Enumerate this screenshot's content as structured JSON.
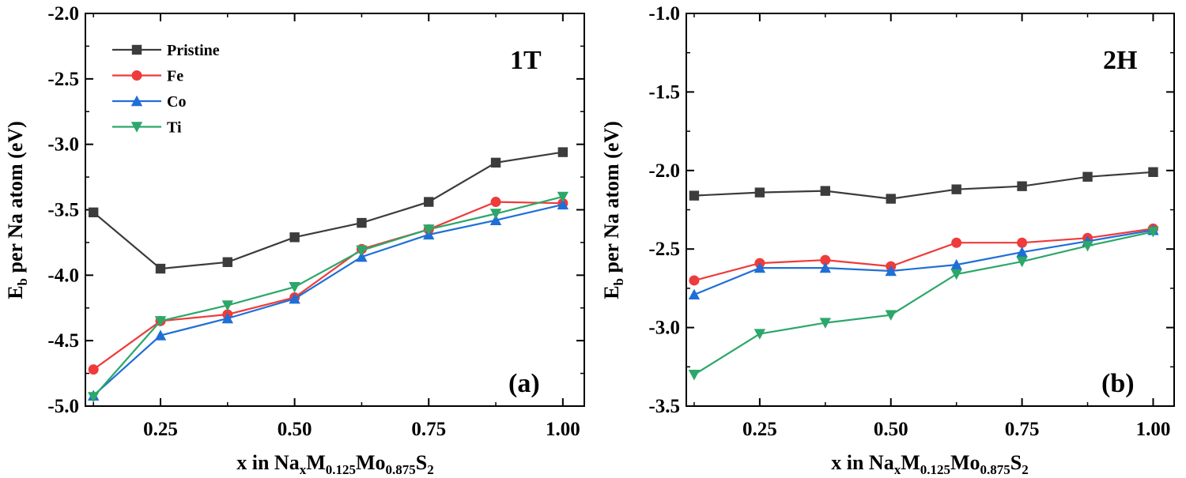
{
  "chart_data": [
    {
      "type": "line",
      "panel_label": "(a)",
      "phase_label": "1T",
      "xlabel": {
        "pre": "x in Na",
        "s1": "x",
        "m": "M",
        "s2": "0.125",
        "mo": "Mo",
        "s3": "0.875",
        "s": "S",
        "s4": "2"
      },
      "ylabel": {
        "pre": "E",
        "sub": "b",
        "post": " per Na atom (eV)"
      },
      "xlim": [
        0.11,
        1.04
      ],
      "ylim": [
        -5.0,
        -2.0
      ],
      "xticks": [
        0.25,
        0.5,
        0.75,
        1.0
      ],
      "xtick_labels": [
        "0.25",
        "0.50",
        "0.75",
        "1.00"
      ],
      "yticks": [
        -5.0,
        -4.5,
        -4.0,
        -3.5,
        -3.0,
        -2.5,
        -2.0
      ],
      "ytick_labels": [
        "-5.0",
        "-4.5",
        "-4.0",
        "-3.5",
        "-3.0",
        "-2.5",
        "-2.0"
      ],
      "legend_position": "top-left",
      "x": [
        0.125,
        0.25,
        0.375,
        0.5,
        0.625,
        0.75,
        0.875,
        1.0
      ],
      "series": [
        {
          "name": "Pristine",
          "color": "#3c3c3c",
          "marker": "square",
          "values": [
            -3.52,
            -3.95,
            -3.9,
            -3.71,
            -3.6,
            -3.44,
            -3.14,
            -3.06
          ]
        },
        {
          "name": "Fe",
          "color": "#ee3b3b",
          "marker": "circle",
          "values": [
            -4.72,
            -4.35,
            -4.3,
            -4.17,
            -3.8,
            -3.65,
            -3.44,
            -3.45
          ]
        },
        {
          "name": "Co",
          "color": "#1f6fd6",
          "marker": "triangle-up",
          "values": [
            -4.92,
            -4.46,
            -4.33,
            -4.18,
            -3.86,
            -3.69,
            -3.58,
            -3.46
          ]
        },
        {
          "name": "Ti",
          "color": "#2ca76a",
          "marker": "triangle-down",
          "values": [
            -4.93,
            -4.35,
            -4.23,
            -4.09,
            -3.81,
            -3.65,
            -3.53,
            -3.4
          ]
        }
      ]
    },
    {
      "type": "line",
      "panel_label": "(b)",
      "phase_label": "2H",
      "xlabel": {
        "pre": "x in Na",
        "s1": "x",
        "m": "M",
        "s2": "0.125",
        "mo": "Mo",
        "s3": "0.875",
        "s": "S",
        "s4": "2"
      },
      "ylabel": {
        "pre": "E",
        "sub": "b",
        "post": " per Na atom (eV)"
      },
      "xlim": [
        0.11,
        1.04
      ],
      "ylim": [
        -3.5,
        -1.0
      ],
      "xticks": [
        0.25,
        0.5,
        0.75,
        1.0
      ],
      "xtick_labels": [
        "0.25",
        "0.50",
        "0.75",
        "1.00"
      ],
      "yticks": [
        -3.5,
        -3.0,
        -2.5,
        -2.0,
        -1.5,
        -1.0
      ],
      "ytick_labels": [
        "-3.5",
        "-3.0",
        "-2.5",
        "-2.0",
        "-1.5",
        "-1.0"
      ],
      "x": [
        0.125,
        0.25,
        0.375,
        0.5,
        0.625,
        0.75,
        0.875,
        1.0
      ],
      "series": [
        {
          "name": "Pristine",
          "color": "#3c3c3c",
          "marker": "square",
          "values": [
            -2.16,
            -2.14,
            -2.13,
            -2.18,
            -2.12,
            -2.1,
            -2.04,
            -2.01
          ]
        },
        {
          "name": "Fe",
          "color": "#ee3b3b",
          "marker": "circle",
          "values": [
            -2.7,
            -2.59,
            -2.57,
            -2.61,
            -2.46,
            -2.46,
            -2.43,
            -2.37
          ]
        },
        {
          "name": "Co",
          "color": "#1f6fd6",
          "marker": "triangle-up",
          "values": [
            -2.79,
            -2.62,
            -2.62,
            -2.64,
            -2.6,
            -2.52,
            -2.45,
            -2.38
          ]
        },
        {
          "name": "Ti",
          "color": "#2ca76a",
          "marker": "triangle-down",
          "values": [
            -3.3,
            -3.04,
            -2.97,
            -2.92,
            -2.66,
            -2.58,
            -2.48,
            -2.39
          ]
        }
      ]
    }
  ]
}
